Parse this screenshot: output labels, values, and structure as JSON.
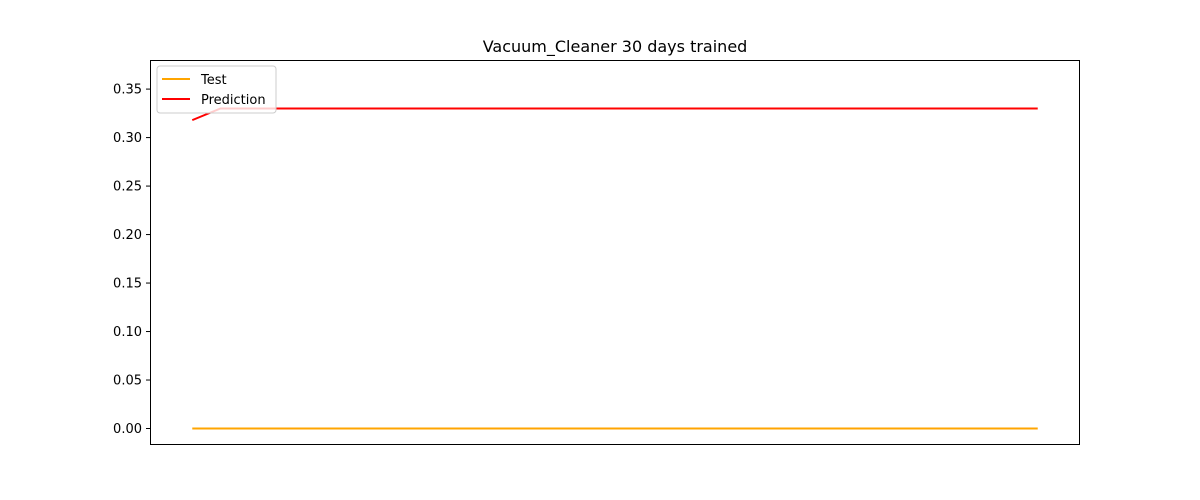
{
  "chart_data": {
    "type": "line",
    "title": "Vacuum_Cleaner 30 days trained",
    "xlabel": "",
    "ylabel": "",
    "x_ticks_visible": false,
    "ylim": [
      -0.017,
      0.38
    ],
    "yticks": [
      "0.00",
      "0.05",
      "0.10",
      "0.15",
      "0.20",
      "0.25",
      "0.30",
      "0.35"
    ],
    "ytick_values": [
      0.0,
      0.05,
      0.1,
      0.15,
      0.2,
      0.25,
      0.3,
      0.35
    ],
    "xlim": [
      -1.5,
      31.5
    ],
    "x": [
      0,
      1,
      2,
      3,
      4,
      5,
      6,
      7,
      8,
      9,
      10,
      11,
      12,
      13,
      14,
      15,
      16,
      17,
      18,
      19,
      20,
      21,
      22,
      23,
      24,
      25,
      26,
      27,
      28,
      29,
      30
    ],
    "series": [
      {
        "name": "Test",
        "color": "#ffa500",
        "values": [
          0,
          0,
          0,
          0,
          0,
          0,
          0,
          0,
          0,
          0,
          0,
          0,
          0,
          0,
          0,
          0,
          0,
          0,
          0,
          0,
          0,
          0,
          0,
          0,
          0,
          0,
          0,
          0,
          0,
          0,
          0
        ]
      },
      {
        "name": "Prediction",
        "color": "#ff0000",
        "values": [
          0.318,
          0.33,
          0.33,
          0.33,
          0.33,
          0.33,
          0.33,
          0.33,
          0.33,
          0.33,
          0.33,
          0.33,
          0.33,
          0.33,
          0.33,
          0.33,
          0.33,
          0.33,
          0.33,
          0.33,
          0.33,
          0.33,
          0.33,
          0.33,
          0.33,
          0.33,
          0.33,
          0.33,
          0.33,
          0.33,
          0.33
        ]
      }
    ],
    "legend": "top-left",
    "grid": false
  }
}
